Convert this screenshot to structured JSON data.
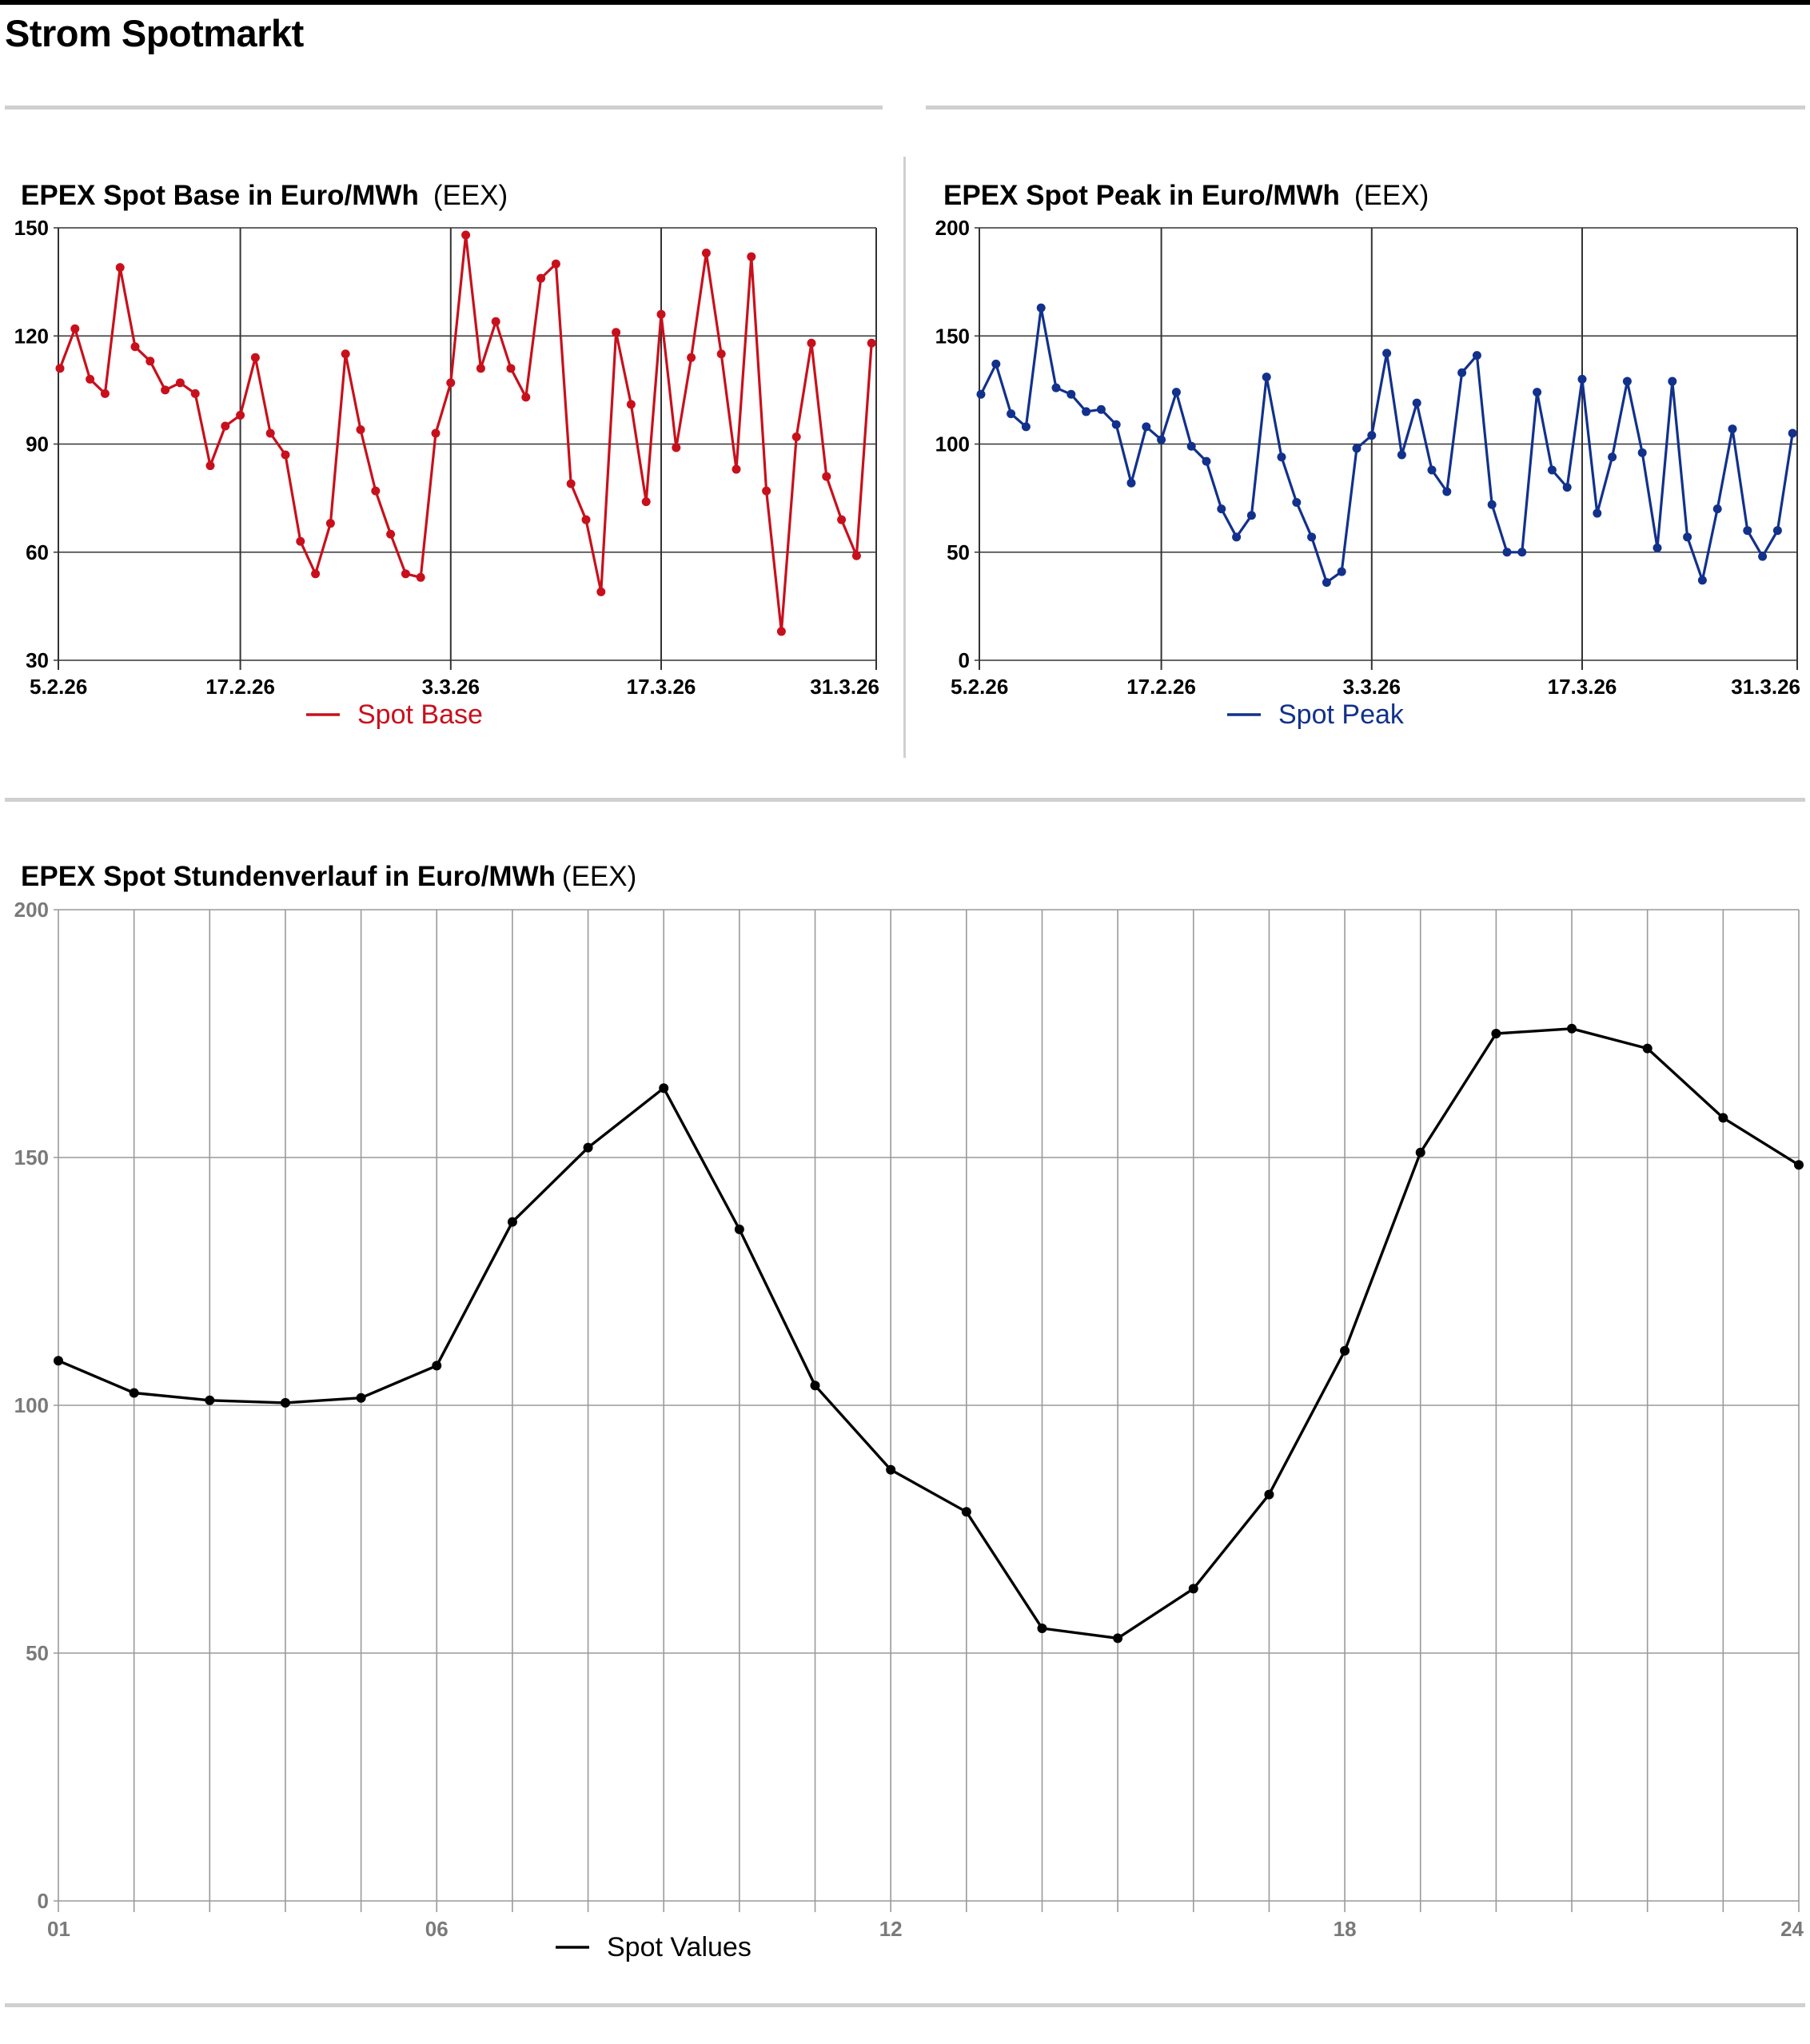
{
  "page_title": "Strom Spotmarkt",
  "colors": {
    "base": "#c8101c",
    "peak": "#12318c",
    "hourly": "#000000",
    "grid": "#333333",
    "grid_light": "#9a9a9a",
    "rule": "#d0d0d0"
  },
  "chart_data": [
    {
      "id": "base",
      "type": "line",
      "title": "EPEX Spot Base in Euro/MWh",
      "source": "(EEX)",
      "x_tick_labels": [
        "5.2.26",
        "17.2.26",
        "3.3.26",
        "17.3.26",
        "31.3.26"
      ],
      "x_tick_index": [
        0,
        12,
        26,
        40,
        54
      ],
      "y_ticks": [
        30,
        60,
        90,
        120,
        150
      ],
      "ylim": [
        30,
        150
      ],
      "grid": true,
      "legend_position": "bottom-center",
      "series": [
        {
          "name": "Spot Base",
          "values": [
            111,
            122,
            108,
            104,
            139,
            117,
            113,
            105,
            107,
            104,
            84,
            95,
            98,
            114,
            93,
            87,
            63,
            54,
            68,
            115,
            94,
            77,
            65,
            54,
            53,
            93,
            107,
            148,
            111,
            124,
            111,
            103,
            136,
            140,
            79,
            69,
            49,
            121,
            101,
            74,
            126,
            89,
            114,
            143,
            115,
            83,
            142,
            77,
            38,
            92,
            118,
            81,
            69,
            59,
            118
          ]
        }
      ]
    },
    {
      "id": "peak",
      "type": "line",
      "title": "EPEX Spot Peak in Euro/MWh",
      "source": "(EEX)",
      "x_tick_labels": [
        "5.2.26",
        "17.2.26",
        "3.3.26",
        "17.3.26",
        "31.3.26"
      ],
      "x_tick_index": [
        0,
        12,
        26,
        40,
        54
      ],
      "y_ticks": [
        0,
        50,
        100,
        150,
        200
      ],
      "ylim": [
        0,
        200
      ],
      "grid": true,
      "legend_position": "bottom-center",
      "series": [
        {
          "name": "Spot Peak",
          "values": [
            123,
            137,
            114,
            108,
            163,
            126,
            123,
            115,
            116,
            109,
            82,
            108,
            102,
            124,
            99,
            92,
            70,
            57,
            67,
            131,
            94,
            73,
            57,
            36,
            41,
            98,
            104,
            142,
            95,
            119,
            88,
            78,
            133,
            141,
            72,
            50,
            50,
            124,
            88,
            80,
            130,
            68,
            94,
            129,
            96,
            52,
            129,
            57,
            37,
            70,
            107,
            60,
            48,
            60,
            105
          ]
        }
      ]
    },
    {
      "id": "hourly",
      "type": "line",
      "title": "EPEX Spot Stundenverlauf in Euro/MWh",
      "source": "(EEX)",
      "x": [
        1,
        2,
        3,
        4,
        5,
        6,
        7,
        8,
        9,
        10,
        11,
        12,
        13,
        14,
        15,
        16,
        17,
        18,
        19,
        20,
        21,
        22,
        23,
        24
      ],
      "x_tick_labels": [
        "01",
        "06",
        "12",
        "18",
        "24"
      ],
      "x_tick_values": [
        1,
        6,
        12,
        18,
        24
      ],
      "y_ticks": [
        0,
        50,
        100,
        150,
        200
      ],
      "ylim": [
        0,
        200
      ],
      "grid": true,
      "legend_position": "bottom-center",
      "series": [
        {
          "name": "Spot Values",
          "values": [
            109,
            102.5,
            101,
            100.5,
            101.5,
            108,
            137,
            152,
            164,
            135.5,
            104,
            87,
            78.5,
            55,
            53,
            63,
            82,
            111,
            151,
            175,
            176,
            172,
            158,
            148.5
          ]
        }
      ]
    }
  ]
}
